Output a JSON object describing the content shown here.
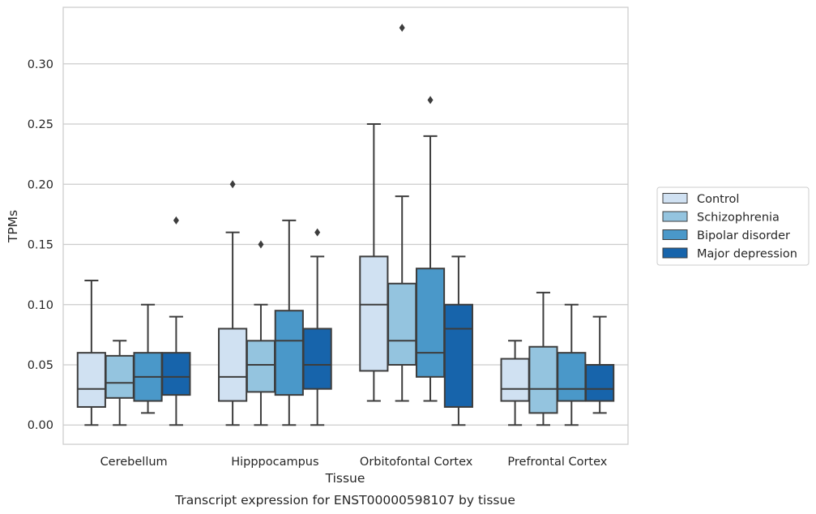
{
  "chart_data": {
    "type": "box",
    "title": "",
    "caption": "Transcript expression for ENST00000598107 by tissue",
    "xlabel": "Tissue",
    "ylabel": "TPMs",
    "ylim": [
      -0.016,
      0.347
    ],
    "yticks": [
      0.0,
      0.05,
      0.1,
      0.15,
      0.2,
      0.25,
      0.3
    ],
    "ytick_labels": [
      "0.00",
      "0.05",
      "0.10",
      "0.15",
      "0.20",
      "0.25",
      "0.30"
    ],
    "grid": true,
    "legend_position": "right",
    "categories": [
      "Cerebellum",
      "Hipppocampus",
      "Orbitofontal Cortex",
      "Prefrontal Cortex"
    ],
    "series": [
      {
        "name": "Control",
        "color": "#d0e1f2",
        "boxes": [
          {
            "whislo": 0.0,
            "q1": 0.015,
            "med": 0.03,
            "q3": 0.06,
            "whishi": 0.12,
            "fliers": []
          },
          {
            "whislo": 0.0,
            "q1": 0.02,
            "med": 0.04,
            "q3": 0.08,
            "whishi": 0.16,
            "fliers": [
              0.2
            ]
          },
          {
            "whislo": 0.02,
            "q1": 0.045,
            "med": 0.1,
            "q3": 0.14,
            "whishi": 0.25,
            "fliers": []
          },
          {
            "whislo": 0.0,
            "q1": 0.02,
            "med": 0.03,
            "q3": 0.055,
            "whishi": 0.07,
            "fliers": []
          }
        ]
      },
      {
        "name": "Schizophrenia",
        "color": "#94c4df",
        "boxes": [
          {
            "whislo": 0.0,
            "q1": 0.0225,
            "med": 0.035,
            "q3": 0.0575,
            "whishi": 0.07,
            "fliers": []
          },
          {
            "whislo": 0.0,
            "q1": 0.0275,
            "med": 0.05,
            "q3": 0.07,
            "whishi": 0.1,
            "fliers": [
              0.15
            ]
          },
          {
            "whislo": 0.02,
            "q1": 0.05,
            "med": 0.07,
            "q3": 0.1175,
            "whishi": 0.19,
            "fliers": [
              0.33
            ]
          },
          {
            "whislo": 0.0,
            "q1": 0.01,
            "med": 0.03,
            "q3": 0.065,
            "whishi": 0.11,
            "fliers": []
          }
        ]
      },
      {
        "name": "Bipolar disorder",
        "color": "#4a98c9",
        "boxes": [
          {
            "whislo": 0.01,
            "q1": 0.02,
            "med": 0.04,
            "q3": 0.06,
            "whishi": 0.1,
            "fliers": []
          },
          {
            "whislo": 0.0,
            "q1": 0.025,
            "med": 0.07,
            "q3": 0.095,
            "whishi": 0.17,
            "fliers": []
          },
          {
            "whislo": 0.02,
            "q1": 0.04,
            "med": 0.06,
            "q3": 0.13,
            "whishi": 0.24,
            "fliers": [
              0.27
            ]
          },
          {
            "whislo": 0.0,
            "q1": 0.02,
            "med": 0.03,
            "q3": 0.06,
            "whishi": 0.1,
            "fliers": []
          }
        ]
      },
      {
        "name": "Major depression",
        "color": "#1764ab",
        "boxes": [
          {
            "whislo": 0.0,
            "q1": 0.025,
            "med": 0.04,
            "q3": 0.06,
            "whishi": 0.09,
            "fliers": [
              0.17
            ]
          },
          {
            "whislo": 0.0,
            "q1": 0.03,
            "med": 0.05,
            "q3": 0.08,
            "whishi": 0.14,
            "fliers": [
              0.16
            ]
          },
          {
            "whislo": 0.0,
            "q1": 0.015,
            "med": 0.08,
            "q3": 0.1,
            "whishi": 0.14,
            "fliers": []
          },
          {
            "whislo": 0.01,
            "q1": 0.02,
            "med": 0.03,
            "q3": 0.05,
            "whishi": 0.09,
            "fliers": []
          }
        ]
      }
    ]
  }
}
